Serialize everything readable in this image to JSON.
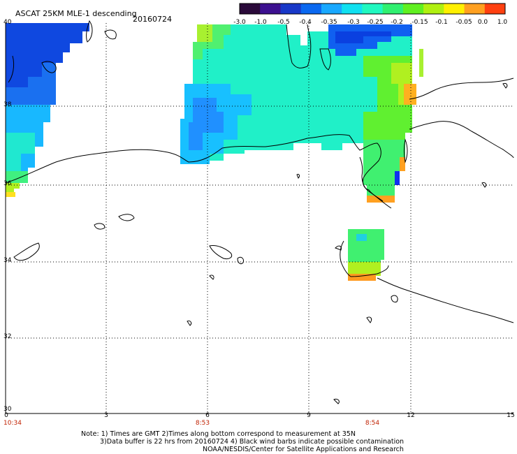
{
  "header": {
    "title": "ASCAT 25KM MLE-1 descending",
    "date": "20160724"
  },
  "colorbar": {
    "ticks": [
      "-3.0",
      "-1.0",
      "-0.5",
      "-0.4",
      "-0.35",
      "-0.3",
      "-0.25",
      "-0.2",
      "-0.15",
      "-0.1",
      "-0.05",
      "0.0",
      "1.0"
    ],
    "colors": [
      "#2a0a3a",
      "#3c1090",
      "#1838c8",
      "#0a68f0",
      "#18a8ff",
      "#10e0f0",
      "#20f8c0",
      "#30f070",
      "#60f020",
      "#b0f010",
      "#fff000",
      "#ffa020",
      "#ff4010"
    ]
  },
  "axes": {
    "y_labels": [
      "40",
      "38",
      "36",
      "34",
      "32",
      "30"
    ],
    "x_labels": [
      "0",
      "3",
      "6",
      "9",
      "12",
      "15"
    ],
    "times": [
      "10:34",
      "8:53",
      "8:54"
    ]
  },
  "notes": {
    "line1": "Note: 1) Times are GMT 2)Times along bottom correspond to measurement at 35N",
    "line2": "3)Data buffer is 22 hrs from 20160724 4) Black wind barbs indicate possible contamination",
    "line3": "NOAA/NESDIS/Center for Satellite Applications and Research"
  }
}
